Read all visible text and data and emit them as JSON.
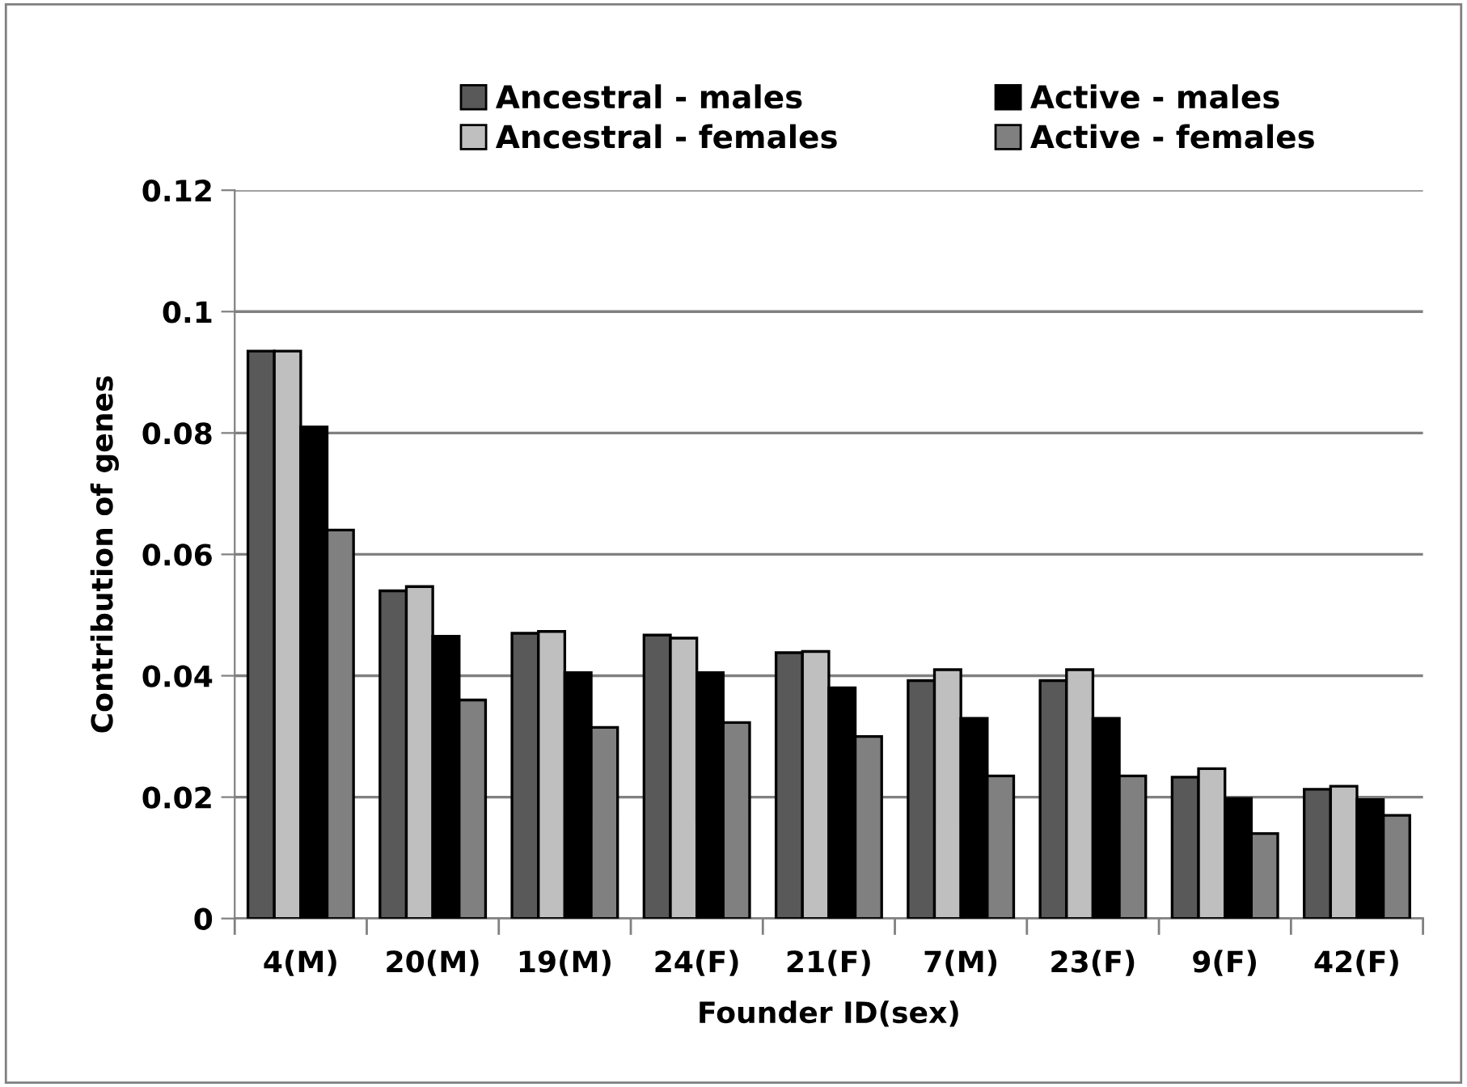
{
  "chart_data": {
    "type": "bar",
    "xlabel": "Founder ID(sex)",
    "ylabel": "Contribution of genes",
    "categories": [
      "4(M)",
      "20(M)",
      "19(M)",
      "24(F)",
      "21(F)",
      "7(M)",
      "23(F)",
      "9(F)",
      "42(F)"
    ],
    "series": [
      {
        "name": "Ancestral - males",
        "color": "#595959",
        "values": [
          0.0935,
          0.054,
          0.047,
          0.0467,
          0.0438,
          0.0392,
          0.0392,
          0.0233,
          0.0213
        ]
      },
      {
        "name": "Ancestral - females",
        "color": "#bfbfbf",
        "values": [
          0.0935,
          0.0547,
          0.0473,
          0.0462,
          0.044,
          0.041,
          0.041,
          0.0247,
          0.0218
        ]
      },
      {
        "name": "Active - males",
        "color": "#000000",
        "values": [
          0.081,
          0.0465,
          0.0405,
          0.0405,
          0.038,
          0.033,
          0.033,
          0.0198,
          0.0196
        ]
      },
      {
        "name": "Active - females",
        "color": "#808080",
        "values": [
          0.064,
          0.036,
          0.0315,
          0.0323,
          0.03,
          0.0235,
          0.0235,
          0.014,
          0.017
        ]
      }
    ],
    "ylim": [
      0,
      0.12
    ],
    "yticks": [
      0,
      {
        "value": 0.02,
        "label": "0.02"
      },
      {
        "value": 0.04,
        "label": "0.04"
      },
      {
        "value": 0.06,
        "label": "0.06"
      },
      {
        "value": 0.08,
        "label": "0.08"
      },
      {
        "value": 0.1,
        "label": "0.1"
      },
      {
        "value": 0.12,
        "label": "0.12"
      }
    ],
    "grid": "y",
    "legend": "top"
  }
}
